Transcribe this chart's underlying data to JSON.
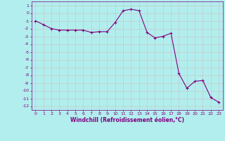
{
  "x": [
    0,
    1,
    2,
    3,
    4,
    5,
    6,
    7,
    8,
    9,
    10,
    11,
    12,
    13,
    14,
    15,
    16,
    17,
    18,
    19,
    20,
    21,
    22,
    23
  ],
  "y": [
    -1,
    -1.5,
    -2,
    -2.2,
    -2.2,
    -2.2,
    -2.2,
    -2.5,
    -2.4,
    -2.4,
    -1.2,
    0.3,
    0.5,
    0.3,
    -2.5,
    -3.2,
    -3.0,
    -2.6,
    -7.8,
    -9.7,
    -8.8,
    -8.7,
    -10.9,
    -11.5
  ],
  "line_color": "#800080",
  "marker": "+",
  "marker_size": 3,
  "bg_color": "#b2eeee",
  "grid_color": "#c8c8c8",
  "xlabel": "Windchill (Refroidissement éolien,°C)",
  "xlim": [
    -0.5,
    23.5
  ],
  "ylim": [
    -12.5,
    1.5
  ],
  "yticks": [
    1,
    0,
    -1,
    -2,
    -3,
    -4,
    -5,
    -6,
    -7,
    -8,
    -9,
    -10,
    -11,
    -12
  ],
  "xticks": [
    0,
    1,
    2,
    3,
    4,
    5,
    6,
    7,
    8,
    9,
    10,
    11,
    12,
    13,
    14,
    15,
    16,
    17,
    18,
    19,
    20,
    21,
    22,
    23
  ],
  "tick_color": "#800080",
  "label_color": "#800080"
}
